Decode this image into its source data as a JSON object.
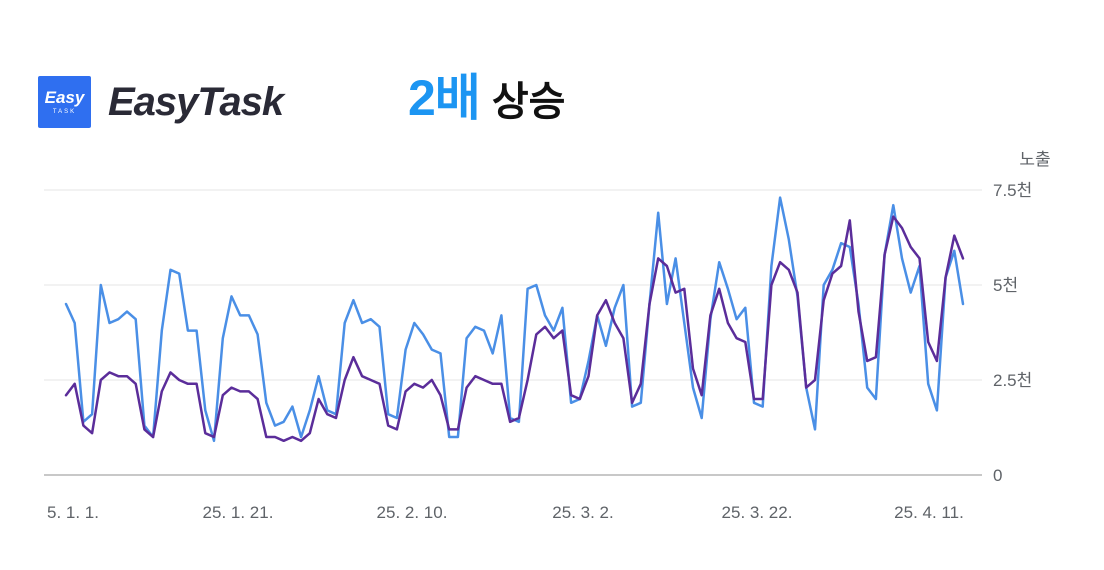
{
  "brand": {
    "logo_small_text": "Easy",
    "logo_sub_text": "TASK",
    "name": "EasyTask"
  },
  "headline": {
    "highlight": "2배",
    "rest": "상승"
  },
  "colors": {
    "brand_blue": "#2f6ff0",
    "highlight_blue": "#1c95f2",
    "series_light": "#4a8fe6",
    "series_dark": "#5b2d9a",
    "grid": "#e6e6e6",
    "axis": "#c8c8c8"
  },
  "chart_data": {
    "type": "line",
    "ylabel": "노출",
    "ylim": [
      0,
      7500
    ],
    "y_ticks": [
      {
        "value": 0,
        "label": "0"
      },
      {
        "value": 2500,
        "label": "2.5천"
      },
      {
        "value": 5000,
        "label": "5천"
      },
      {
        "value": 7500,
        "label": "7.5천"
      }
    ],
    "x_ticks": [
      "5. 1. 1.",
      "25. 1. 21.",
      "25. 2. 10.",
      "25. 3. 2.",
      "25. 3. 22.",
      "25. 4. 11."
    ],
    "grid": true,
    "legend": "none",
    "series": [
      {
        "color": "#4a8fe6",
        "values": [
          4500,
          4000,
          1400,
          1600,
          5000,
          4000,
          4100,
          4300,
          4100,
          1300,
          1000,
          3800,
          5400,
          5300,
          3800,
          3800,
          1700,
          900,
          3600,
          4700,
          4200,
          4200,
          3700,
          1900,
          1300,
          1400,
          1800,
          1000,
          1700,
          2600,
          1700,
          1600,
          4000,
          4600,
          4000,
          4100,
          3900,
          1600,
          1500,
          3300,
          4000,
          3700,
          3300,
          3200,
          1000,
          1000,
          3600,
          3900,
          3800,
          3200,
          4200,
          1500,
          1400,
          4900,
          5000,
          4200,
          3800,
          4400,
          1900,
          2000,
          3000,
          4200,
          3400,
          4400,
          5000,
          1800,
          1900,
          4500,
          6900,
          4500,
          5700,
          4000,
          2300,
          1500,
          4100,
          5600,
          4900,
          4100,
          4400,
          1900,
          1800,
          5500,
          7300,
          6200,
          4700,
          2300,
          1200,
          5000,
          5400,
          6100,
          6000,
          4500,
          2300,
          2000,
          5800,
          7100,
          5700,
          4800,
          5500,
          2400,
          1700,
          5200,
          5900,
          4500
        ]
      },
      {
        "color": "#5b2d9a",
        "values": [
          2100,
          2400,
          1300,
          1100,
          2500,
          2700,
          2600,
          2600,
          2400,
          1200,
          1000,
          2200,
          2700,
          2500,
          2400,
          2400,
          1100,
          1000,
          2100,
          2300,
          2200,
          2200,
          2000,
          1000,
          1000,
          900,
          1000,
          900,
          1100,
          2000,
          1600,
          1500,
          2500,
          3100,
          2600,
          2500,
          2400,
          1300,
          1200,
          2200,
          2400,
          2300,
          2500,
          2100,
          1200,
          1200,
          2300,
          2600,
          2500,
          2400,
          2400,
          1400,
          1500,
          2500,
          3700,
          3900,
          3600,
          3800,
          2100,
          2000,
          2600,
          4200,
          4600,
          4000,
          3600,
          1900,
          2400,
          4500,
          5700,
          5500,
          4800,
          4900,
          2800,
          2100,
          4200,
          4900,
          4000,
          3600,
          3500,
          2000,
          2000,
          5000,
          5600,
          5400,
          4800,
          2300,
          2500,
          4600,
          5300,
          5500,
          6700,
          4300,
          3000,
          3100,
          5800,
          6800,
          6500,
          6000,
          5700,
          3500,
          3000,
          5200,
          6300,
          5700
        ]
      }
    ]
  }
}
